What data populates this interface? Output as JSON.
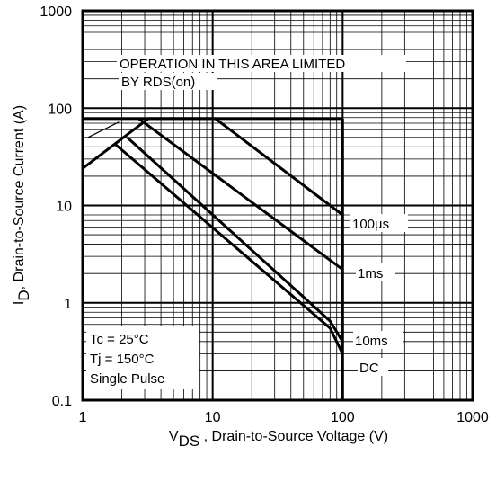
{
  "chart_data": {
    "type": "line",
    "title": "",
    "x_scale": "log",
    "y_scale": "log",
    "xlim": [
      1,
      1000
    ],
    "ylim": [
      0.1,
      1000
    ],
    "x_ticks": [
      "1",
      "10",
      "100",
      "1000"
    ],
    "y_ticks": [
      "0.1",
      "1",
      "10",
      "100",
      "1000"
    ],
    "xlabel": {
      "main": "V",
      "sub": "DS",
      "rest": " , Drain-to-Source Voltage (V)"
    },
    "ylabel": {
      "main": "I",
      "sub": "D",
      "rest": ",  Drain-to-Source Current (A)"
    },
    "grid": true,
    "series": [
      {
        "name": "100µs",
        "points": [
          [
            1,
            24
          ],
          [
            3.2,
            78
          ],
          [
            10.5,
            78
          ],
          [
            100,
            8
          ]
        ]
      },
      {
        "name": "1ms",
        "points": [
          [
            2.7,
            78
          ],
          [
            100,
            2.2
          ]
        ]
      },
      {
        "name": "10ms",
        "points": [
          [
            2.2,
            50
          ],
          [
            80,
            0.65
          ],
          [
            100,
            0.4
          ]
        ]
      },
      {
        "name": "DC",
        "points": [
          [
            1.8,
            42
          ],
          [
            80,
            0.55
          ],
          [
            100,
            0.3
          ]
        ]
      }
    ],
    "limit_lines": [
      {
        "points": [
          [
            1,
            78
          ],
          [
            100,
            78
          ]
        ]
      },
      {
        "points": [
          [
            100,
            78
          ],
          [
            100,
            0.1
          ]
        ]
      }
    ],
    "annotations": {
      "rds_label_line1": "OPERATION IN THIS AREA LIMITED",
      "rds_label_line2": "BY RDS(on)",
      "rds_pointer": {
        "from": [
          1.1,
          50
        ],
        "to": [
          1.9,
          72
        ]
      },
      "series_labels": [
        "100µs",
        "1ms",
        "10ms",
        "DC"
      ],
      "conditions": [
        "Tc = 25°C",
        "Tj = 150°C",
        "Single Pulse"
      ]
    }
  }
}
